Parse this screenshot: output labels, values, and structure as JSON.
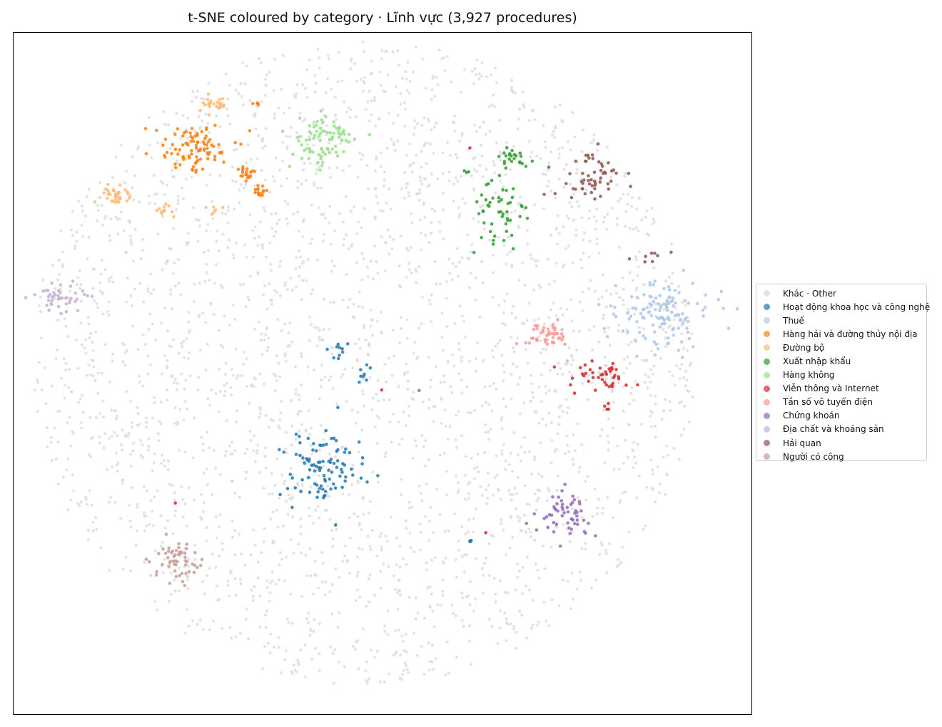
{
  "chart_data": {
    "type": "scatter",
    "title": "t-SNE coloured by category · Lĩnh vực (3,927 procedures)",
    "xlabel": "",
    "ylabel": "",
    "xlim": [
      -100,
      100
    ],
    "ylim": [
      -100,
      100
    ],
    "grid": false,
    "axis_ticks": false,
    "legend_position": "right",
    "background_points": {
      "name": "Khác · Other",
      "color": "#d9d9d9",
      "count": 2700,
      "shape": "disc",
      "center": [
        -5,
        3
      ],
      "radius": 90
    },
    "series": [
      {
        "name": "Hoạt động khoa học và công nghệ",
        "color": "#1f77b4",
        "clusters": [
          {
            "center": [
              -16,
              -28
            ],
            "spread": [
              10,
              9
            ],
            "count": 95
          },
          {
            "center": [
              -12,
              7
            ],
            "spread": [
              3,
              2
            ],
            "count": 10
          },
          {
            "center": [
              -4,
              0
            ],
            "spread": [
              2,
              2.5
            ],
            "count": 8
          },
          {
            "center": [
              24,
              -49
            ],
            "spread": [
              0.6,
              0.6
            ],
            "count": 3
          }
        ]
      },
      {
        "name": "Thuế",
        "color": "#aec7e8",
        "clusters": [
          {
            "center": [
              76,
              17
            ],
            "spread": [
              11,
              8
            ],
            "count": 130
          }
        ]
      },
      {
        "name": "Hàng hải và đường thủy nội địa",
        "color": "#ff7f0e",
        "clusters": [
          {
            "center": [
              -51,
              66
            ],
            "spread": [
              8,
              6
            ],
            "count": 90
          },
          {
            "center": [
              -37,
              59
            ],
            "spread": [
              2.5,
              2
            ],
            "count": 18
          },
          {
            "center": [
              -33,
              53
            ],
            "spread": [
              1.8,
              1.3
            ],
            "count": 15
          },
          {
            "center": [
              -34,
              79
            ],
            "spread": [
              1,
              0.4
            ],
            "count": 4
          }
        ]
      },
      {
        "name": "Đường bộ",
        "color": "#ffbb78",
        "clusters": [
          {
            "center": [
              -46,
              79
            ],
            "spread": [
              4,
              2.5
            ],
            "count": 25
          },
          {
            "center": [
              -72,
              52
            ],
            "spread": [
              3,
              3
            ],
            "count": 35
          },
          {
            "center": [
              -59,
              48
            ],
            "spread": [
              3,
              2.5
            ],
            "count": 12
          },
          {
            "center": [
              -46,
              48
            ],
            "spread": [
              3,
              1.5
            ],
            "count": 6
          }
        ]
      },
      {
        "name": "Xuất nhập khẩu",
        "color": "#2ca02c",
        "clusters": [
          {
            "center": [
              35,
              63
            ],
            "spread": [
              4,
              2.5
            ],
            "count": 22
          },
          {
            "center": [
              32,
              46
            ],
            "spread": [
              6,
              11
            ],
            "count": 50
          },
          {
            "center": [
              23,
              59
            ],
            "spread": [
              1,
              0.6
            ],
            "count": 3
          }
        ]
      },
      {
        "name": "Hàng không",
        "color": "#98df8a",
        "clusters": [
          {
            "center": [
              -16,
              68
            ],
            "spread": [
              8,
              7
            ],
            "count": 80
          }
        ]
      },
      {
        "name": "Viễn thông và Internet",
        "color": "#d62728",
        "clusters": [
          {
            "center": [
              58,
              -1
            ],
            "spread": [
              7,
              3.5
            ],
            "count": 40
          },
          {
            "center": [
              61,
              -10
            ],
            "spread": [
              0.5,
              1.5
            ],
            "count": 4
          },
          {
            "center": [
              24,
              66
            ],
            "spread": [
              0.2,
              0.2
            ],
            "count": 1
          },
          {
            "center": [
              -56,
              -38
            ],
            "spread": [
              0.2,
              0.2
            ],
            "count": 1
          },
          {
            "center": [
              28,
              -47
            ],
            "spread": [
              0.2,
              0.2
            ],
            "count": 1
          },
          {
            "center": [
              0,
              -5
            ],
            "spread": [
              0.2,
              0.2
            ],
            "count": 1
          }
        ]
      },
      {
        "name": "Tần số vô tuyến điện",
        "color": "#ff9896",
        "clusters": [
          {
            "center": [
              44,
              11
            ],
            "spread": [
              6,
              3
            ],
            "count": 45
          }
        ]
      },
      {
        "name": "Chứng khoán",
        "color": "#9467bd",
        "clusters": [
          {
            "center": [
              50,
              -41
            ],
            "spread": [
              6,
              5
            ],
            "count": 55
          },
          {
            "center": [
              10,
              -5
            ],
            "spread": [
              0.2,
              0.2
            ],
            "count": 1
          }
        ]
      },
      {
        "name": "Địa chất và khoáng sản",
        "color": "#c5b0d5",
        "clusters": [
          {
            "center": [
              -87,
              22
            ],
            "spread": [
              6,
              4
            ],
            "count": 45
          }
        ]
      },
      {
        "name": "Hải quan",
        "color": "#8c564b",
        "clusters": [
          {
            "center": [
              56,
              57
            ],
            "spread": [
              8,
              6
            ],
            "count": 55
          },
          {
            "center": [
              73,
              34
            ],
            "spread": [
              6,
              1.5
            ],
            "count": 8
          }
        ]
      },
      {
        "name": "Người có công",
        "color": "#c49c94",
        "clusters": [
          {
            "center": [
              -55,
              -55
            ],
            "spread": [
              6,
              6
            ],
            "count": 55
          }
        ]
      }
    ]
  }
}
